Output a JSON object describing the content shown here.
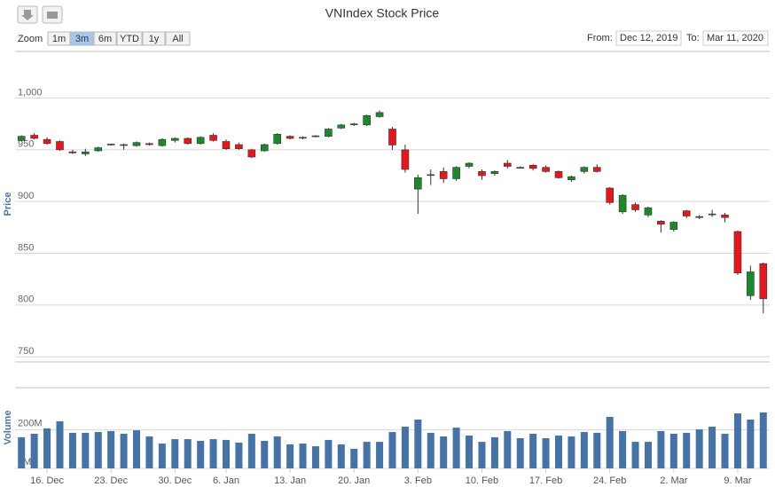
{
  "chart_data": {
    "type": "candlestick",
    "title": "VNIndex Stock Price",
    "ylabel": "Price",
    "x": [
      "Dec 12",
      "Dec 13",
      "Dec 16",
      "Dec 17",
      "Dec 18",
      "Dec 19",
      "Dec 20",
      "Dec 23",
      "Dec 24",
      "Dec 25",
      "Dec 26",
      "Dec 27",
      "Dec 30",
      "Dec 31",
      "Jan 2",
      "Jan 3",
      "Jan 6",
      "Jan 7",
      "Jan 8",
      "Jan 9",
      "Jan 10",
      "Jan 13",
      "Jan 14",
      "Jan 15",
      "Jan 16",
      "Jan 17",
      "Jan 20",
      "Jan 21",
      "Jan 22",
      "Jan 30",
      "Jan 31",
      "Feb 3",
      "Feb 4",
      "Feb 5",
      "Feb 6",
      "Feb 7",
      "Feb 10",
      "Feb 11",
      "Feb 12",
      "Feb 13",
      "Feb 14",
      "Feb 17",
      "Feb 18",
      "Feb 19",
      "Feb 20",
      "Feb 21",
      "Feb 24",
      "Feb 25",
      "Feb 26",
      "Feb 27",
      "Feb 28",
      "Mar 2",
      "Mar 3",
      "Mar 4",
      "Mar 5",
      "Mar 6",
      "Mar 9",
      "Mar 10",
      "Mar 11"
    ],
    "open": [
      959,
      964,
      960,
      958,
      948,
      946,
      949,
      955,
      955,
      954,
      956,
      954,
      959,
      961,
      956,
      964,
      958,
      955,
      950,
      949,
      956,
      963,
      962,
      963,
      963,
      971,
      974.5,
      974,
      982,
      970,
      950,
      912,
      926,
      929,
      922,
      934,
      929,
      927,
      937,
      933,
      935,
      933,
      929,
      921,
      929,
      933,
      913,
      890,
      897,
      887,
      881,
      873,
      891,
      884.5,
      888,
      887,
      871,
      809,
      840
    ],
    "high": [
      964,
      966,
      962,
      959,
      950,
      951,
      953,
      956,
      956,
      958,
      957,
      961,
      962,
      962,
      963,
      966,
      960,
      957,
      951,
      956,
      966,
      964,
      963,
      964,
      971,
      975,
      976,
      984,
      988,
      972,
      955,
      926,
      931,
      933,
      934,
      938,
      931,
      930,
      940,
      934,
      936,
      935,
      930,
      925,
      934,
      936,
      914,
      907,
      899,
      895,
      882,
      881,
      892,
      887,
      892,
      889,
      872,
      838,
      841
    ],
    "low": [
      958,
      960,
      955,
      949,
      946,
      944,
      948,
      954,
      950,
      953,
      954,
      953,
      957,
      955,
      955,
      958,
      950,
      950,
      942,
      948,
      955,
      960,
      960,
      962,
      962,
      970,
      973,
      973,
      981,
      950,
      928,
      888,
      916,
      918,
      920,
      932,
      921,
      925,
      932,
      932,
      930,
      928,
      922,
      919,
      927,
      928,
      897,
      888,
      890,
      885,
      870,
      871,
      884,
      883,
      885,
      880,
      829,
      805,
      792
    ],
    "close": [
      963,
      961,
      956,
      950,
      947,
      948,
      952,
      955.5,
      955,
      957,
      955,
      960,
      961,
      956,
      962,
      959,
      951,
      951,
      943,
      955,
      965,
      961,
      962,
      963.5,
      970,
      974,
      975,
      983,
      986,
      954.6,
      931,
      923,
      926,
      922,
      933,
      937,
      925,
      929,
      934,
      933,
      932,
      929,
      923,
      924,
      933,
      929,
      899,
      906,
      892,
      894,
      878,
      880,
      886,
      885.5,
      888,
      884.5,
      831,
      832,
      806
    ],
    "up_color": "#1a8a2a",
    "down_color": "#e8151b",
    "ylim": [
      745,
      1045
    ],
    "yticks": [
      750,
      800,
      850,
      900,
      950,
      {
        "value": 1000,
        "label": "1,000"
      }
    ],
    "grid": true,
    "xticks": [
      {
        "value": "Dec 16",
        "label": "16. Dec"
      },
      {
        "value": "Dec 23",
        "label": "23. Dec"
      },
      {
        "value": "Dec 30",
        "label": "30. Dec"
      },
      {
        "value": "Jan 6",
        "label": "6. Jan"
      },
      {
        "value": "Jan 13",
        "label": "13. Jan"
      },
      {
        "value": "Jan 20",
        "label": "20. Jan"
      },
      {
        "value": "Feb 3",
        "label": "3. Feb"
      },
      {
        "value": "Feb 10",
        "label": "10. Feb"
      },
      {
        "value": "Feb 17",
        "label": "17. Feb"
      },
      {
        "value": "Feb 24",
        "label": "24. Feb"
      },
      {
        "value": "Mar 2",
        "label": "2. Mar"
      },
      {
        "value": "Mar 9",
        "label": "9. Mar"
      }
    ],
    "volume": {
      "label": "Volume",
      "color": "#4572a7",
      "values": [
        162,
        180,
        208,
        245,
        185,
        185,
        189,
        194,
        180,
        198,
        166,
        129,
        152,
        152,
        143,
        152,
        148,
        134,
        180,
        143,
        166,
        125,
        129,
        115,
        148,
        125,
        102,
        138,
        138,
        189,
        217,
        254,
        185,
        166,
        212,
        171,
        138,
        162,
        194,
        157,
        180,
        157,
        171,
        166,
        189,
        185,
        268,
        194,
        138,
        138,
        194,
        180,
        185,
        203,
        217,
        180,
        286,
        254,
        291
      ],
      "ylim": [
        0,
        420
      ],
      "yticks": [
        {
          "value": 0,
          "label": "0M"
        },
        {
          "value": 200,
          "label": "200M"
        }
      ]
    },
    "range_selector": {
      "label": "Zoom",
      "buttons": [
        "1m",
        "3m",
        "6m",
        "YTD",
        "1y",
        "All"
      ],
      "selected": 1
    },
    "date_range": {
      "from_label": "From:",
      "from": "Dec 12, 2019",
      "to_label": "To:",
      "to": "Mar 11, 2020"
    }
  }
}
